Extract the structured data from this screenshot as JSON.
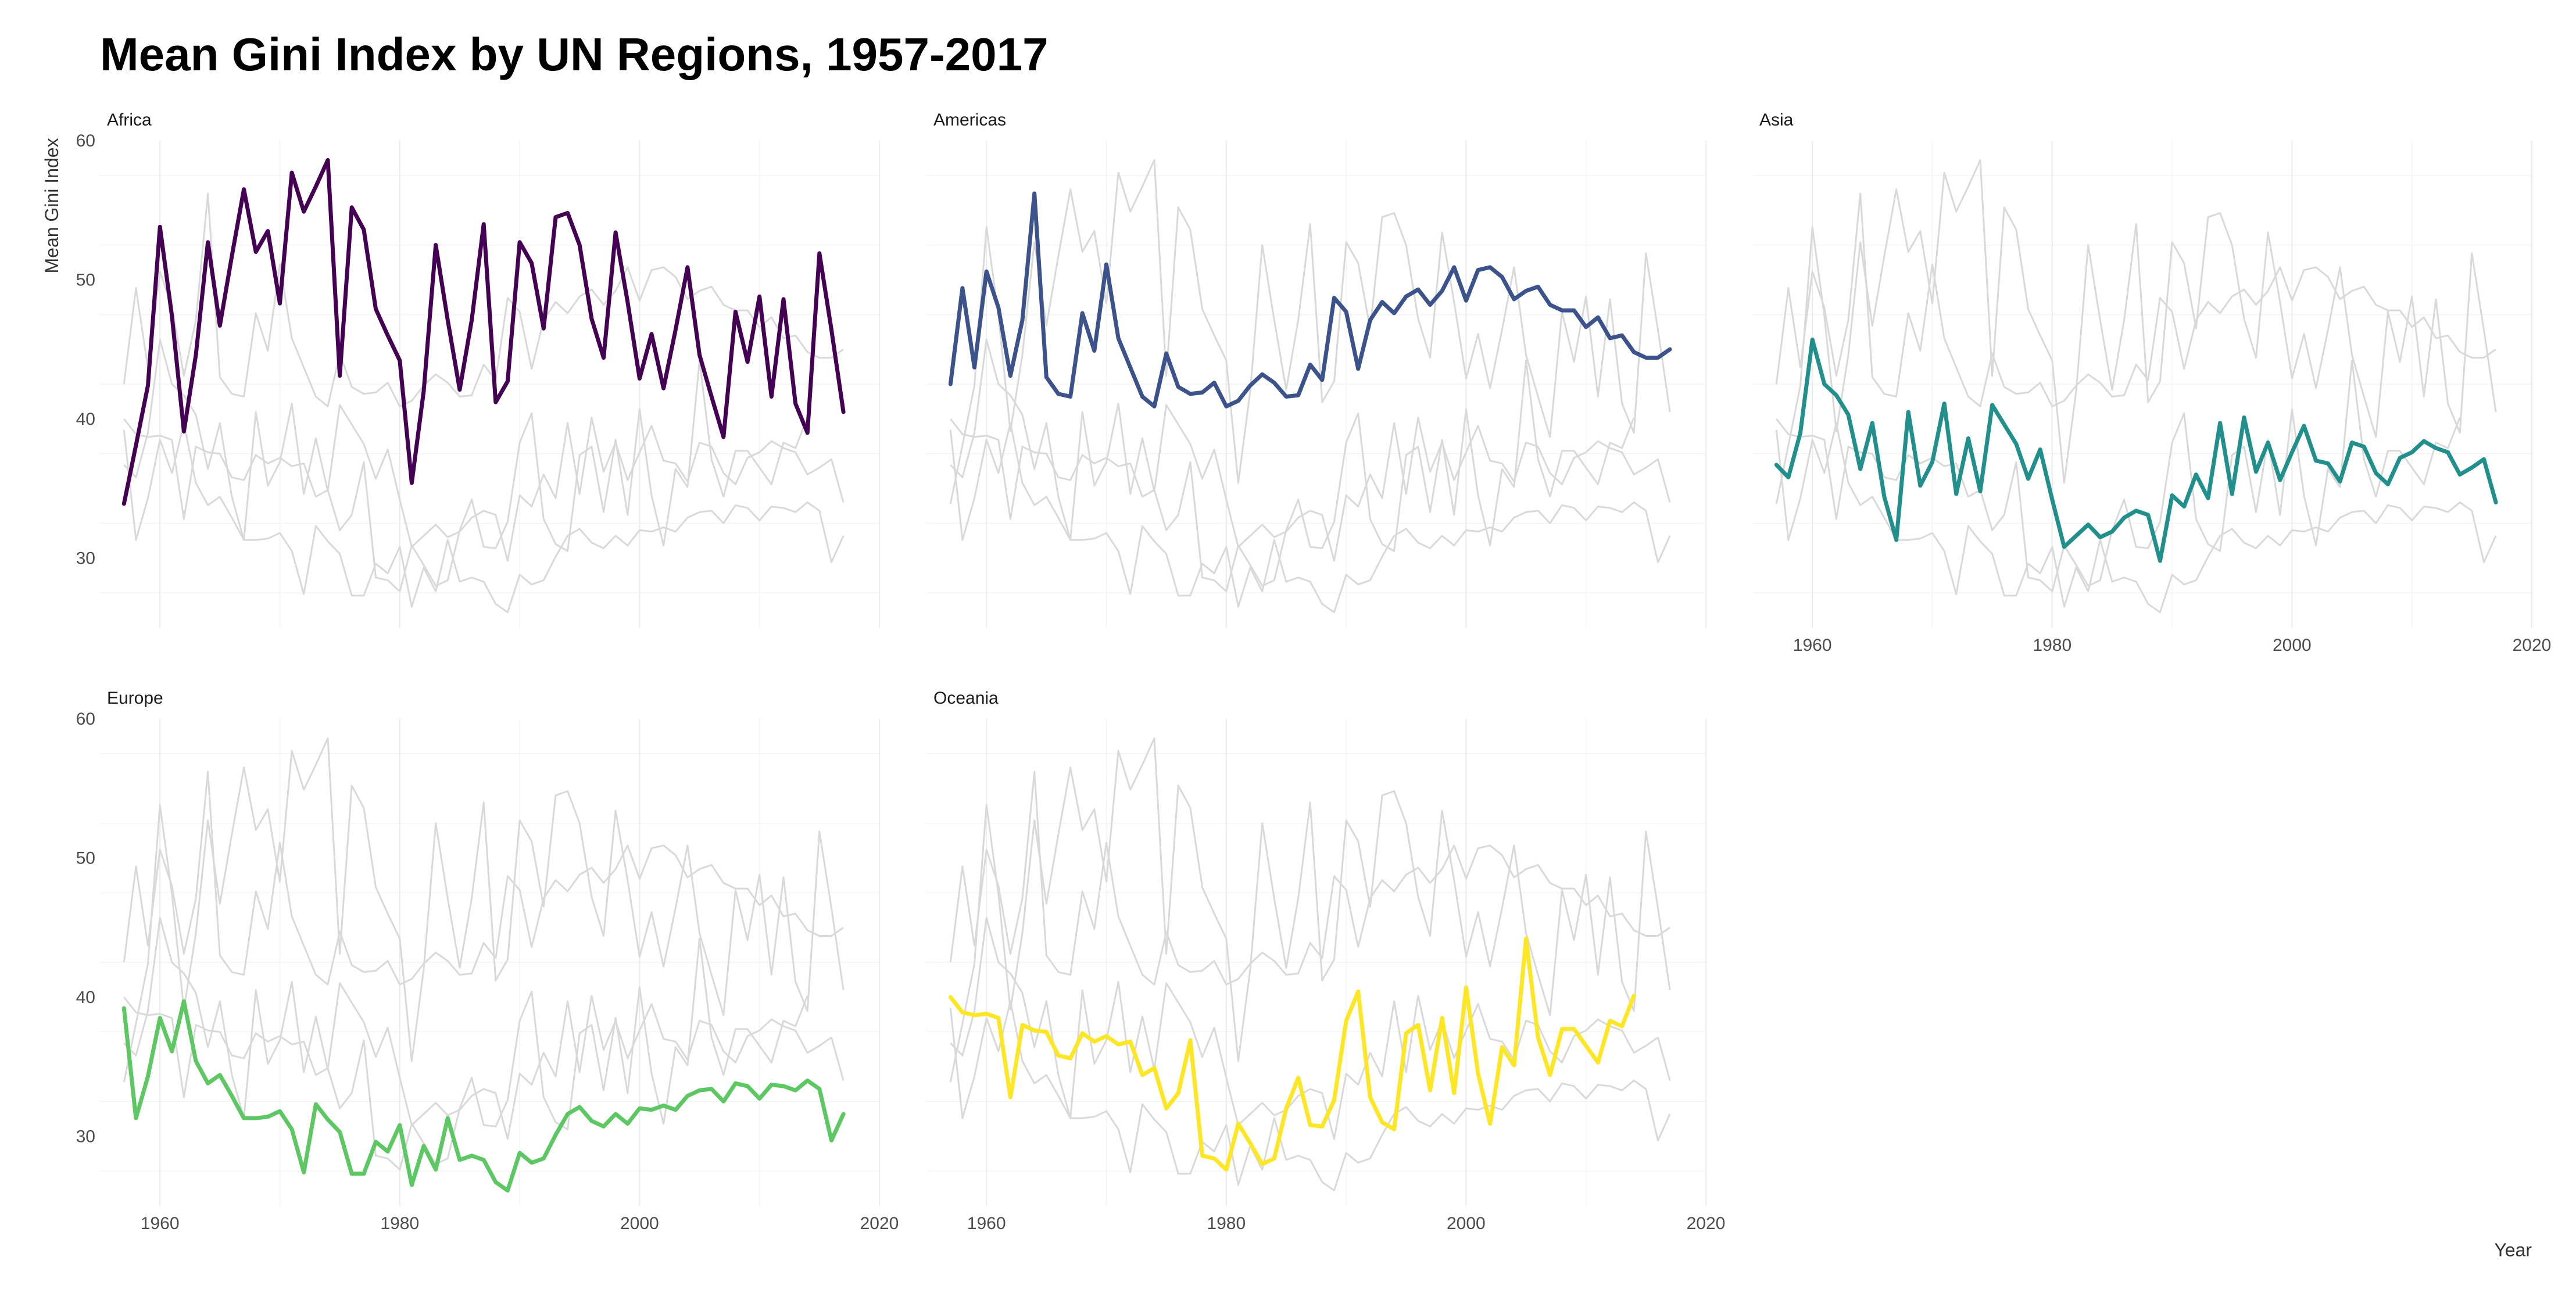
{
  "title": "Mean Gini Index by UN Regions, 1957-2017",
  "chart_data": {
    "type": "line",
    "title": "Mean Gini Index by UN Regions, 1957-2017",
    "xlabel": "Year",
    "ylabel": "Mean Gini Index",
    "xlim": [
      1955,
      2020
    ],
    "ylim": [
      25,
      60
    ],
    "x_ticks": [
      1960,
      1980,
      2000,
      2020
    ],
    "y_ticks": [
      30,
      40,
      50,
      60
    ],
    "grid": true,
    "facets": [
      "Africa",
      "Americas",
      "Asia",
      "Europe",
      "Oceania"
    ],
    "background_series_color": "#d9d9d9",
    "x": [
      1957,
      1958,
      1959,
      1960,
      1961,
      1962,
      1963,
      1964,
      1965,
      1966,
      1967,
      1968,
      1969,
      1970,
      1971,
      1972,
      1973,
      1974,
      1975,
      1976,
      1977,
      1978,
      1979,
      1980,
      1981,
      1982,
      1983,
      1984,
      1985,
      1986,
      1987,
      1988,
      1989,
      1990,
      1991,
      1992,
      1993,
      1994,
      1995,
      1996,
      1997,
      1998,
      1999,
      2000,
      2001,
      2002,
      2003,
      2004,
      2005,
      2006,
      2007,
      2008,
      2009,
      2010,
      2011,
      2012,
      2013,
      2014,
      2015,
      2016,
      2017
    ],
    "series": [
      {
        "name": "Africa",
        "color": "#440154",
        "values": [
          33.9,
          38.1,
          42.4,
          53.8,
          47.4,
          39.1,
          44.6,
          52.7,
          46.7,
          51.7,
          56.5,
          52.0,
          53.5,
          48.3,
          57.7,
          54.9,
          56.7,
          58.6,
          43.1,
          55.2,
          53.6,
          47.9,
          46.0,
          44.2,
          35.4,
          42.0,
          52.5,
          47.1,
          42.1,
          47.1,
          54.0,
          41.2,
          42.7,
          52.7,
          51.2,
          46.5,
          54.5,
          54.8,
          52.5,
          47.2,
          44.4,
          53.4,
          48.4,
          42.9,
          46.1,
          42.2,
          46.4,
          50.9,
          44.6,
          41.6,
          38.7,
          47.7,
          44.1,
          48.8,
          41.6,
          48.6,
          41.1,
          39.0,
          51.9,
          46.4,
          40.5
        ]
      },
      {
        "name": "Americas",
        "color": "#3b528b",
        "values": [
          42.5,
          49.4,
          43.7,
          50.6,
          48.0,
          43.1,
          47.1,
          56.2,
          43.0,
          41.8,
          41.6,
          47.6,
          44.9,
          51.1,
          45.8,
          43.7,
          41.6,
          40.9,
          44.7,
          42.3,
          41.8,
          41.9,
          42.6,
          40.9,
          41.3,
          42.4,
          43.2,
          42.6,
          41.6,
          41.7,
          43.9,
          42.8,
          48.7,
          47.7,
          43.6,
          47.1,
          48.4,
          47.6,
          48.8,
          49.3,
          48.2,
          49.2,
          50.9,
          48.5,
          50.7,
          50.9,
          50.2,
          48.6,
          49.2,
          49.5,
          48.2,
          47.8,
          47.8,
          46.6,
          47.3,
          45.8,
          46.0,
          44.8,
          44.4,
          44.4,
          45.0
        ]
      },
      {
        "name": "Asia",
        "color": "#21908c",
        "values": [
          36.7,
          35.8,
          39.0,
          45.7,
          42.5,
          41.7,
          40.3,
          36.4,
          39.7,
          34.4,
          31.3,
          40.5,
          35.2,
          36.9,
          41.1,
          34.6,
          38.6,
          34.8,
          41.0,
          39.6,
          38.2,
          35.7,
          37.8,
          34.2,
          30.8,
          31.6,
          32.4,
          31.5,
          31.9,
          32.9,
          33.4,
          33.1,
          29.8,
          34.5,
          33.7,
          36.0,
          34.3,
          39.7,
          34.6,
          40.1,
          36.2,
          38.3,
          35.6,
          37.6,
          39.5,
          37.0,
          36.8,
          35.5,
          38.3,
          38.0,
          36.1,
          35.3,
          37.2,
          37.6,
          38.4,
          37.9,
          37.6,
          36.0,
          36.5,
          37.1,
          34.0
        ]
      },
      {
        "name": "Europe",
        "color": "#5dc863",
        "values": [
          39.2,
          31.3,
          34.3,
          38.5,
          36.1,
          39.7,
          35.4,
          33.8,
          34.4,
          32.9,
          31.3,
          31.3,
          31.4,
          31.8,
          30.5,
          27.4,
          32.3,
          31.2,
          30.3,
          27.3,
          27.3,
          29.6,
          28.9,
          30.8,
          26.5,
          29.3,
          27.6,
          31.3,
          28.3,
          28.6,
          28.3,
          26.7,
          26.1,
          28.8,
          28.1,
          28.4,
          30.1,
          31.6,
          32.1,
          31.1,
          30.7,
          31.6,
          30.9,
          32.0,
          31.9,
          32.2,
          31.9,
          32.9,
          33.3,
          33.4,
          32.5,
          33.8,
          33.6,
          32.7,
          33.7,
          33.6,
          33.3,
          34.0,
          33.4,
          29.7,
          31.6
        ]
      },
      {
        "name": "Oceania",
        "color": "#fde725",
        "values": [
          40.0,
          38.9,
          38.7,
          38.8,
          38.5,
          32.8,
          38.0,
          37.6,
          37.5,
          35.8,
          35.6,
          37.4,
          36.8,
          37.2,
          36.6,
          36.8,
          34.4,
          34.9,
          32.0,
          33.1,
          36.9,
          28.6,
          28.4,
          27.6,
          30.9,
          29.5,
          28.0,
          28.4,
          32.0,
          34.2,
          30.8,
          30.7,
          32.6,
          38.3,
          40.4,
          32.8,
          31.0,
          30.5,
          37.4,
          38.0,
          33.3,
          38.5,
          33.1,
          40.7,
          34.5,
          30.9,
          36.4,
          35.1,
          44.2,
          37.1,
          34.4,
          37.7,
          37.7,
          36.5,
          35.3,
          38.3,
          37.9,
          40.1,
          null,
          null,
          null
        ]
      }
    ]
  }
}
